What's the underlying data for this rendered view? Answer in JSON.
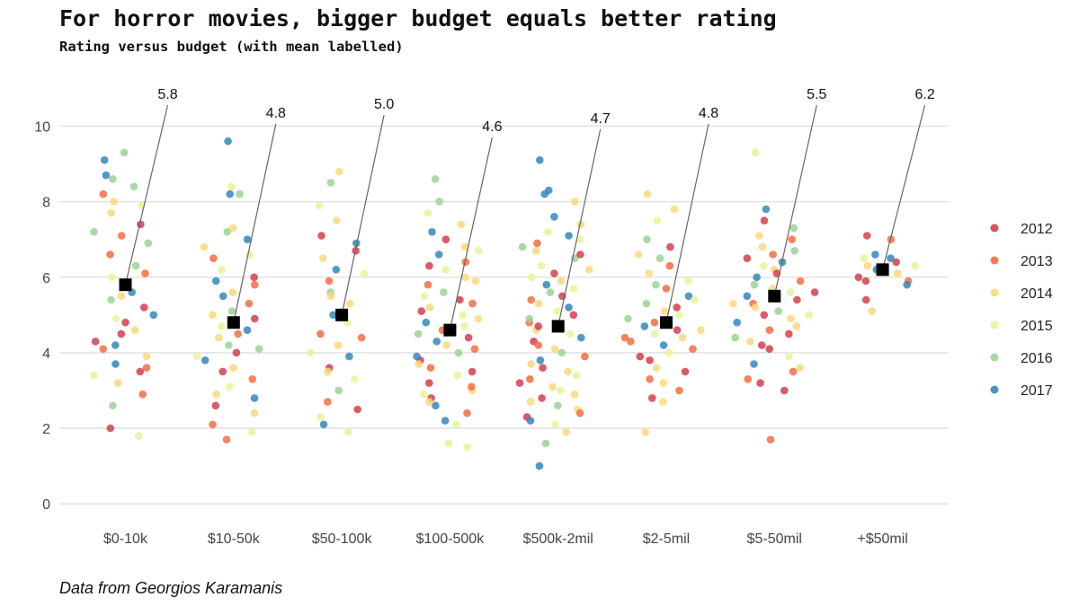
{
  "chart_data": {
    "type": "scatter",
    "title": "For horror movies, bigger budget equals better rating",
    "subtitle": "Rating versus budget (with mean labelled)",
    "caption": "Data from Georgios Karamanis",
    "xlabel": "",
    "ylabel": "",
    "categories": [
      "$0-10k",
      "$10-50k",
      "$50-100k",
      "$100-500k",
      "$500k-2mil",
      "$2-5mil",
      "$5-50mil",
      "+$50mil"
    ],
    "means": [
      5.8,
      4.8,
      5.0,
      4.6,
      4.7,
      4.8,
      5.5,
      6.2
    ],
    "mean_labels": [
      "5.8",
      "4.8",
      "5.0",
      "4.6",
      "4.7",
      "4.8",
      "5.5",
      "6.2"
    ],
    "ylim": [
      -0.4,
      11.2
    ],
    "yticks": [
      "0",
      "2",
      "4",
      "6",
      "8",
      "10"
    ],
    "grid": true,
    "legend_position": "right",
    "legend": [
      {
        "label": "2012",
        "color": "#d53e4f"
      },
      {
        "label": "2013",
        "color": "#f46d43"
      },
      {
        "label": "2014",
        "color": "#fdd87a"
      },
      {
        "label": "2015",
        "color": "#e6f598"
      },
      {
        "label": "2016",
        "color": "#99d594"
      },
      {
        "label": "2017",
        "color": "#3288bd"
      }
    ],
    "points": [
      [
        0,
        4.8,
        0
      ],
      [
        0,
        9.1,
        5
      ],
      [
        0,
        9.3,
        4
      ],
      [
        0,
        8.6,
        4
      ],
      [
        0,
        8.4,
        4
      ],
      [
        0,
        8.7,
        5
      ],
      [
        0,
        7.7,
        2
      ],
      [
        0,
        7.1,
        1
      ],
      [
        0,
        6.6,
        1
      ],
      [
        0,
        6.3,
        4
      ],
      [
        0,
        5.8,
        3
      ],
      [
        0,
        5.5,
        2
      ],
      [
        0,
        5.2,
        0
      ],
      [
        0,
        4.9,
        3
      ],
      [
        0,
        4.5,
        0
      ],
      [
        0,
        4.2,
        5
      ],
      [
        0,
        3.9,
        2
      ],
      [
        0,
        3.7,
        5
      ],
      [
        0,
        3.5,
        0
      ],
      [
        0,
        3.2,
        2
      ],
      [
        0,
        2.9,
        1
      ],
      [
        0,
        2.6,
        4
      ],
      [
        0,
        2.0,
        0
      ],
      [
        0,
        1.8,
        3
      ],
      [
        0,
        6.1,
        1
      ],
      [
        0,
        7.4,
        0
      ],
      [
        0,
        8.0,
        2
      ],
      [
        0,
        6.9,
        4
      ],
      [
        0,
        5.0,
        5
      ],
      [
        0,
        4.1,
        1
      ],
      [
        0,
        3.4,
        3
      ],
      [
        0,
        7.9,
        3
      ],
      [
        0,
        5.6,
        5
      ],
      [
        0,
        4.6,
        2
      ],
      [
        0,
        6.0,
        3
      ],
      [
        0,
        8.2,
        1
      ],
      [
        0,
        7.2,
        4
      ],
      [
        0,
        4.3,
        0
      ],
      [
        0,
        3.6,
        1
      ],
      [
        0,
        5.4,
        4
      ],
      [
        1,
        9.6,
        5
      ],
      [
        1,
        8.4,
        3
      ],
      [
        1,
        8.2,
        5
      ],
      [
        1,
        8.2,
        4
      ],
      [
        1,
        7.2,
        4
      ],
      [
        1,
        7.0,
        5
      ],
      [
        1,
        6.8,
        2
      ],
      [
        1,
        6.5,
        1
      ],
      [
        1,
        6.2,
        3
      ],
      [
        1,
        6.0,
        0
      ],
      [
        1,
        5.9,
        5
      ],
      [
        1,
        5.6,
        2
      ],
      [
        1,
        5.3,
        1
      ],
      [
        1,
        5.1,
        4
      ],
      [
        1,
        4.9,
        0
      ],
      [
        1,
        4.7,
        3
      ],
      [
        1,
        4.5,
        1
      ],
      [
        1,
        4.4,
        2
      ],
      [
        1,
        4.2,
        4
      ],
      [
        1,
        4.0,
        0
      ],
      [
        1,
        3.8,
        5
      ],
      [
        1,
        3.6,
        2
      ],
      [
        1,
        3.3,
        1
      ],
      [
        1,
        3.1,
        3
      ],
      [
        1,
        2.8,
        5
      ],
      [
        1,
        2.6,
        0
      ],
      [
        1,
        2.4,
        2
      ],
      [
        1,
        2.1,
        1
      ],
      [
        1,
        1.9,
        3
      ],
      [
        1,
        1.7,
        1
      ],
      [
        1,
        5.5,
        5
      ],
      [
        1,
        6.6,
        3
      ],
      [
        1,
        4.1,
        4
      ],
      [
        1,
        5.0,
        2
      ],
      [
        1,
        3.5,
        0
      ],
      [
        1,
        2.9,
        2
      ],
      [
        1,
        7.3,
        2
      ],
      [
        1,
        4.6,
        5
      ],
      [
        1,
        5.8,
        1
      ],
      [
        1,
        3.9,
        3
      ],
      [
        2,
        8.8,
        2
      ],
      [
        2,
        8.5,
        4
      ],
      [
        2,
        7.9,
        3
      ],
      [
        2,
        7.1,
        0
      ],
      [
        2,
        6.9,
        5
      ],
      [
        2,
        6.5,
        2
      ],
      [
        2,
        6.2,
        5
      ],
      [
        2,
        6.1,
        3
      ],
      [
        2,
        5.9,
        1
      ],
      [
        2,
        5.6,
        4
      ],
      [
        2,
        5.3,
        2
      ],
      [
        2,
        5.0,
        5
      ],
      [
        2,
        4.8,
        3
      ],
      [
        2,
        4.5,
        1
      ],
      [
        2,
        4.2,
        2
      ],
      [
        2,
        3.9,
        5
      ],
      [
        2,
        3.6,
        0
      ],
      [
        2,
        3.3,
        3
      ],
      [
        2,
        3.0,
        4
      ],
      [
        2,
        2.7,
        1
      ],
      [
        2,
        2.5,
        0
      ],
      [
        2,
        2.3,
        3
      ],
      [
        2,
        2.1,
        5
      ],
      [
        2,
        1.9,
        3
      ],
      [
        2,
        7.5,
        2
      ],
      [
        2,
        6.7,
        0
      ],
      [
        2,
        5.5,
        2
      ],
      [
        2,
        4.4,
        1
      ],
      [
        2,
        4.0,
        3
      ],
      [
        2,
        3.5,
        2
      ],
      [
        3,
        8.6,
        4
      ],
      [
        3,
        8.0,
        4
      ],
      [
        3,
        7.7,
        3
      ],
      [
        3,
        7.4,
        2
      ],
      [
        3,
        7.0,
        0
      ],
      [
        3,
        6.8,
        2
      ],
      [
        3,
        6.6,
        5
      ],
      [
        3,
        6.4,
        1
      ],
      [
        3,
        6.2,
        3
      ],
      [
        3,
        6.0,
        2
      ],
      [
        3,
        5.8,
        1
      ],
      [
        3,
        5.6,
        4
      ],
      [
        3,
        5.4,
        0
      ],
      [
        3,
        5.2,
        2
      ],
      [
        3,
        5.0,
        3
      ],
      [
        3,
        4.8,
        5
      ],
      [
        3,
        4.6,
        1
      ],
      [
        3,
        4.4,
        0
      ],
      [
        3,
        4.2,
        2
      ],
      [
        3,
        4.0,
        4
      ],
      [
        3,
        3.8,
        0
      ],
      [
        3,
        3.6,
        1
      ],
      [
        3,
        3.4,
        3
      ],
      [
        3,
        3.2,
        0
      ],
      [
        3,
        3.0,
        2
      ],
      [
        3,
        2.8,
        0
      ],
      [
        3,
        2.6,
        5
      ],
      [
        3,
        2.4,
        1
      ],
      [
        3,
        2.2,
        5
      ],
      [
        3,
        2.1,
        3
      ],
      [
        3,
        1.6,
        3
      ],
      [
        3,
        1.5,
        3
      ],
      [
        3,
        6.3,
        0
      ],
      [
        3,
        5.5,
        3
      ],
      [
        3,
        4.9,
        2
      ],
      [
        3,
        4.1,
        1
      ],
      [
        3,
        3.7,
        2
      ],
      [
        3,
        3.1,
        1
      ],
      [
        3,
        2.9,
        3
      ],
      [
        3,
        4.3,
        5
      ],
      [
        3,
        5.1,
        0
      ],
      [
        3,
        5.9,
        2
      ],
      [
        3,
        6.7,
        3
      ],
      [
        3,
        7.2,
        5
      ],
      [
        3,
        4.7,
        3
      ],
      [
        3,
        3.5,
        0
      ],
      [
        3,
        2.7,
        2
      ],
      [
        3,
        3.9,
        5
      ],
      [
        3,
        5.3,
        1
      ],
      [
        3,
        4.5,
        4
      ],
      [
        4,
        9.1,
        5
      ],
      [
        4,
        8.3,
        5
      ],
      [
        4,
        8.2,
        5
      ],
      [
        4,
        8.0,
        2
      ],
      [
        4,
        7.6,
        5
      ],
      [
        4,
        7.4,
        2
      ],
      [
        4,
        7.2,
        3
      ],
      [
        4,
        7.1,
        5
      ],
      [
        4,
        6.9,
        1
      ],
      [
        4,
        6.7,
        2
      ],
      [
        4,
        6.5,
        4
      ],
      [
        4,
        6.3,
        3
      ],
      [
        4,
        6.1,
        0
      ],
      [
        4,
        5.9,
        2
      ],
      [
        4,
        5.8,
        5
      ],
      [
        4,
        5.6,
        4
      ],
      [
        4,
        5.5,
        0
      ],
      [
        4,
        5.3,
        2
      ],
      [
        4,
        5.1,
        3
      ],
      [
        4,
        5.0,
        0
      ],
      [
        4,
        4.8,
        1
      ],
      [
        4,
        4.6,
        2
      ],
      [
        4,
        4.5,
        3
      ],
      [
        4,
        4.3,
        0
      ],
      [
        4,
        4.1,
        2
      ],
      [
        4,
        4.0,
        4
      ],
      [
        4,
        3.8,
        5
      ],
      [
        4,
        3.6,
        0
      ],
      [
        4,
        3.5,
        2
      ],
      [
        4,
        3.3,
        1
      ],
      [
        4,
        3.1,
        2
      ],
      [
        4,
        3.0,
        3
      ],
      [
        4,
        2.8,
        0
      ],
      [
        4,
        2.6,
        4
      ],
      [
        4,
        2.5,
        2
      ],
      [
        4,
        2.3,
        0
      ],
      [
        4,
        2.1,
        3
      ],
      [
        4,
        1.9,
        2
      ],
      [
        4,
        1.6,
        4
      ],
      [
        4,
        1.0,
        5
      ],
      [
        4,
        7.0,
        3
      ],
      [
        4,
        6.6,
        0
      ],
      [
        4,
        6.2,
        2
      ],
      [
        4,
        5.7,
        3
      ],
      [
        4,
        5.2,
        5
      ],
      [
        4,
        4.9,
        4
      ],
      [
        4,
        4.4,
        5
      ],
      [
        4,
        3.9,
        1
      ],
      [
        4,
        3.4,
        3
      ],
      [
        4,
        2.9,
        2
      ],
      [
        4,
        2.4,
        1
      ],
      [
        4,
        6.8,
        4
      ],
      [
        4,
        6.0,
        3
      ],
      [
        4,
        5.4,
        1
      ],
      [
        4,
        4.7,
        0
      ],
      [
        4,
        4.2,
        1
      ],
      [
        4,
        3.7,
        2
      ],
      [
        4,
        3.2,
        0
      ],
      [
        4,
        2.7,
        2
      ],
      [
        4,
        2.2,
        5
      ],
      [
        5,
        8.2,
        2
      ],
      [
        5,
        7.8,
        2
      ],
      [
        5,
        7.5,
        3
      ],
      [
        5,
        7.0,
        4
      ],
      [
        5,
        6.8,
        0
      ],
      [
        5,
        6.5,
        4
      ],
      [
        5,
        6.3,
        1
      ],
      [
        5,
        6.1,
        2
      ],
      [
        5,
        5.9,
        3
      ],
      [
        5,
        5.7,
        1
      ],
      [
        5,
        5.5,
        5
      ],
      [
        5,
        5.3,
        4
      ],
      [
        5,
        5.1,
        2
      ],
      [
        5,
        5.0,
        3
      ],
      [
        5,
        4.8,
        1
      ],
      [
        5,
        4.7,
        5
      ],
      [
        5,
        4.6,
        0
      ],
      [
        5,
        4.5,
        3
      ],
      [
        5,
        4.4,
        2
      ],
      [
        5,
        4.3,
        1
      ],
      [
        5,
        4.2,
        5
      ],
      [
        5,
        4.0,
        3
      ],
      [
        5,
        3.8,
        0
      ],
      [
        5,
        3.6,
        2
      ],
      [
        5,
        3.5,
        0
      ],
      [
        5,
        3.2,
        2
      ],
      [
        5,
        3.0,
        1
      ],
      [
        5,
        2.8,
        0
      ],
      [
        5,
        2.7,
        2
      ],
      [
        5,
        1.9,
        2
      ],
      [
        5,
        6.6,
        2
      ],
      [
        5,
        5.8,
        4
      ],
      [
        5,
        5.2,
        0
      ],
      [
        5,
        4.9,
        4
      ],
      [
        5,
        4.1,
        1
      ],
      [
        5,
        3.9,
        0
      ],
      [
        5,
        3.3,
        1
      ],
      [
        5,
        4.6,
        2
      ],
      [
        5,
        5.4,
        3
      ],
      [
        5,
        4.4,
        1
      ],
      [
        6,
        9.3,
        3
      ],
      [
        6,
        7.8,
        5
      ],
      [
        6,
        7.5,
        0
      ],
      [
        6,
        7.3,
        4
      ],
      [
        6,
        7.1,
        2
      ],
      [
        6,
        7.0,
        1
      ],
      [
        6,
        6.8,
        2
      ],
      [
        6,
        6.6,
        1
      ],
      [
        6,
        6.4,
        5
      ],
      [
        6,
        6.3,
        3
      ],
      [
        6,
        6.2,
        2
      ],
      [
        6,
        6.1,
        0
      ],
      [
        6,
        6.0,
        5
      ],
      [
        6,
        5.9,
        1
      ],
      [
        6,
        5.8,
        4
      ],
      [
        6,
        5.7,
        2
      ],
      [
        6,
        5.6,
        3
      ],
      [
        6,
        5.5,
        5
      ],
      [
        6,
        5.4,
        0
      ],
      [
        6,
        5.3,
        1
      ],
      [
        6,
        5.2,
        2
      ],
      [
        6,
        5.1,
        4
      ],
      [
        6,
        5.0,
        0
      ],
      [
        6,
        4.9,
        2
      ],
      [
        6,
        4.8,
        5
      ],
      [
        6,
        4.6,
        1
      ],
      [
        6,
        4.5,
        0
      ],
      [
        6,
        4.3,
        2
      ],
      [
        6,
        4.1,
        0
      ],
      [
        6,
        3.9,
        3
      ],
      [
        6,
        3.7,
        5
      ],
      [
        6,
        3.5,
        1
      ],
      [
        6,
        3.3,
        1
      ],
      [
        6,
        3.2,
        0
      ],
      [
        6,
        3.0,
        0
      ],
      [
        6,
        1.7,
        1
      ],
      [
        6,
        6.7,
        4
      ],
      [
        6,
        5.6,
        0
      ],
      [
        6,
        5.0,
        3
      ],
      [
        6,
        4.7,
        2
      ],
      [
        6,
        4.4,
        4
      ],
      [
        6,
        6.5,
        0
      ],
      [
        6,
        5.3,
        2
      ],
      [
        6,
        4.2,
        0
      ],
      [
        6,
        3.6,
        2
      ],
      [
        7,
        7.1,
        0
      ],
      [
        7,
        7.0,
        1
      ],
      [
        7,
        6.6,
        5
      ],
      [
        7,
        6.5,
        5
      ],
      [
        7,
        6.5,
        3
      ],
      [
        7,
        6.4,
        0
      ],
      [
        7,
        6.3,
        2
      ],
      [
        7,
        6.3,
        3
      ],
      [
        7,
        6.2,
        5
      ],
      [
        7,
        6.1,
        2
      ],
      [
        7,
        6.0,
        0
      ],
      [
        7,
        5.9,
        1
      ],
      [
        7,
        5.9,
        0
      ],
      [
        7,
        5.8,
        5
      ],
      [
        7,
        5.4,
        0
      ],
      [
        7,
        5.1,
        2
      ]
    ]
  }
}
